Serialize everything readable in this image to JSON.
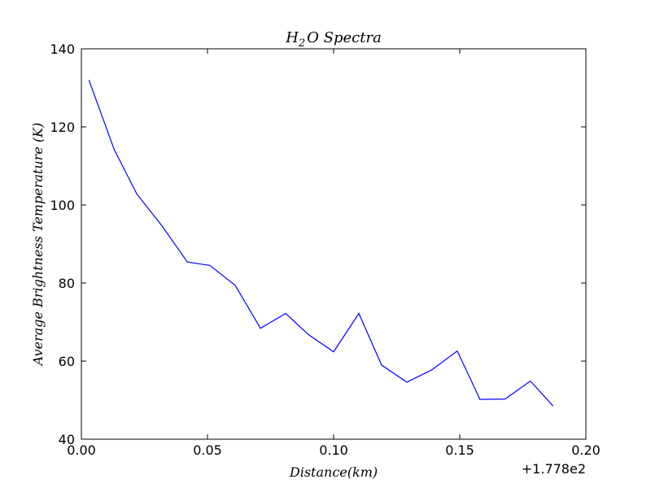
{
  "chart_data": {
    "type": "line",
    "title_main": "H",
    "title_sub": "2",
    "title_rest": "O Spectra",
    "xlabel": "Distance(km)",
    "ylabel": "Average Brightness Temperature (K)",
    "x_offset_label": "+1.778e2",
    "xlim": [
      0.0,
      0.2
    ],
    "ylim": [
      40,
      140
    ],
    "x_ticks": [
      0.0,
      0.05,
      0.1,
      0.15,
      0.2
    ],
    "x_tick_labels": [
      "0.00",
      "0.05",
      "0.10",
      "0.15",
      "0.20"
    ],
    "y_ticks": [
      40,
      60,
      80,
      100,
      120,
      140
    ],
    "y_tick_labels": [
      "40",
      "60",
      "80",
      "100",
      "120",
      "140"
    ],
    "grid": false,
    "series": [
      {
        "color": "#0000ff",
        "x": [
          0.003,
          0.013,
          0.022,
          0.032,
          0.042,
          0.051,
          0.061,
          0.071,
          0.081,
          0.09,
          0.1,
          0.11,
          0.119,
          0.129,
          0.139,
          0.149,
          0.158,
          0.168,
          0.178,
          0.187
        ],
        "y": [
          132.0,
          114.2,
          102.8,
          94.6,
          85.4,
          84.5,
          79.4,
          68.4,
          72.2,
          66.8,
          62.4,
          72.2,
          59.0,
          54.6,
          57.8,
          62.6,
          50.2,
          50.3,
          54.9,
          48.5
        ]
      }
    ]
  }
}
